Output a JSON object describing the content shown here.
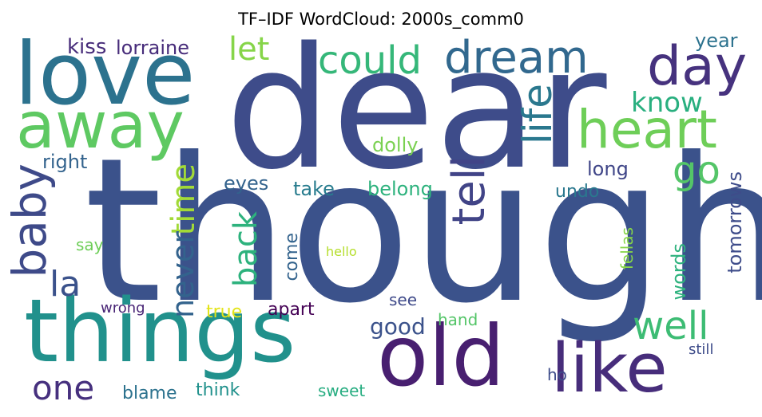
{
  "title": "TF–IDF WordCloud: 2000s_comm0",
  "words": [
    {
      "text": "though",
      "color": "#3b528b"
    },
    {
      "text": "dear",
      "color": "#3e4c8a"
    },
    {
      "text": "love",
      "color": "#2c728e"
    },
    {
      "text": "things",
      "color": "#21918c"
    },
    {
      "text": "away",
      "color": "#5ec962"
    },
    {
      "text": "old",
      "color": "#481f70"
    },
    {
      "text": "like",
      "color": "#472d7b"
    },
    {
      "text": "heart",
      "color": "#6ece58"
    },
    {
      "text": "day",
      "color": "#46327e"
    },
    {
      "text": "dream",
      "color": "#31688e"
    },
    {
      "text": "could",
      "color": "#35b779"
    },
    {
      "text": "baby",
      "color": "#3e4a89"
    },
    {
      "text": "tell",
      "color": "#414487"
    },
    {
      "text": "life",
      "color": "#2a788e"
    },
    {
      "text": "well",
      "color": "#3dbc74"
    },
    {
      "text": "go",
      "color": "#54c568"
    },
    {
      "text": "one",
      "color": "#46307e"
    },
    {
      "text": "let",
      "color": "#86d549"
    },
    {
      "text": "la",
      "color": "#3b528b"
    },
    {
      "text": "know",
      "color": "#29af7f"
    },
    {
      "text": "back",
      "color": "#2db27d"
    },
    {
      "text": "time",
      "color": "#a2da37"
    },
    {
      "text": "never",
      "color": "#33638d"
    },
    {
      "text": "good",
      "color": "#3b528b"
    },
    {
      "text": "kiss",
      "color": "#472c7a"
    },
    {
      "text": "lorraine",
      "color": "#472c7a"
    },
    {
      "text": "year",
      "color": "#2c728e"
    },
    {
      "text": "right",
      "color": "#33638d"
    },
    {
      "text": "eyes",
      "color": "#33638d"
    },
    {
      "text": "take",
      "color": "#287c8e"
    },
    {
      "text": "belong",
      "color": "#2db27d"
    },
    {
      "text": "dolly",
      "color": "#7ad151"
    },
    {
      "text": "long",
      "color": "#404688"
    },
    {
      "text": "undo",
      "color": "#2a788e"
    },
    {
      "text": "tomorrows",
      "color": "#3e4c8a"
    },
    {
      "text": "say",
      "color": "#6ece58"
    },
    {
      "text": "come",
      "color": "#33638d"
    },
    {
      "text": "hello",
      "color": "#b5de2b"
    },
    {
      "text": "fellas",
      "color": "#86d549"
    },
    {
      "text": "words",
      "color": "#2db27d"
    },
    {
      "text": "wrong",
      "color": "#482475"
    },
    {
      "text": "true",
      "color": "#e3e418"
    },
    {
      "text": "apart",
      "color": "#440154"
    },
    {
      "text": "see",
      "color": "#3e4989"
    },
    {
      "text": "hand",
      "color": "#54c568"
    },
    {
      "text": "blame",
      "color": "#2c728e"
    },
    {
      "text": "think",
      "color": "#21918c"
    },
    {
      "text": "sweet",
      "color": "#27ad81"
    },
    {
      "text": "ho",
      "color": "#3e4c8a"
    },
    {
      "text": "still",
      "color": "#3e4c8a"
    }
  ]
}
